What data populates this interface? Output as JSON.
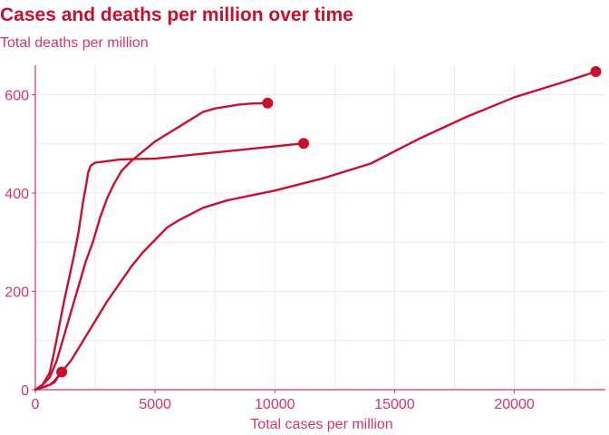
{
  "title": "Cases and deaths per million over time",
  "subtitle": "Total deaths per million",
  "colors": {
    "series": "#c8102e",
    "text": "#d6336c",
    "grid": "#fbe4ea",
    "axis": "#d6336c"
  },
  "chart_data": {
    "type": "line",
    "title": "Cases and deaths per million over time",
    "subtitle": "Total deaths per million",
    "xlabel": "Total cases per million",
    "ylabel": "",
    "xlim": [
      0,
      23800
    ],
    "ylim": [
      0,
      660
    ],
    "xticks": [
      0,
      5000,
      10000,
      15000,
      20000
    ],
    "yticks": [
      0,
      200,
      400,
      600
    ],
    "grid": true,
    "legend": "none",
    "series": [
      {
        "x": [
          0,
          300,
          600,
          800,
          1000,
          1200,
          1400,
          1600,
          1800,
          2000,
          2100,
          2200,
          2300,
          2500,
          3000,
          3500,
          4000,
          5000,
          6000,
          7000,
          8000,
          9000,
          10000,
          11200
        ],
        "y": [
          0,
          10,
          35,
          80,
          130,
          180,
          225,
          270,
          320,
          385,
          410,
          440,
          455,
          462,
          465,
          468,
          469,
          470,
          475,
          480,
          485,
          490,
          495,
          501
        ],
        "end_marker": true
      },
      {
        "x": [
          0,
          300,
          600,
          900,
          1200,
          1500,
          1800,
          2100,
          2400,
          2700,
          3000,
          3300,
          3600,
          4000,
          4500,
          5000,
          5500,
          6000,
          6500,
          7000,
          7500,
          8000,
          8500,
          9000,
          9700
        ],
        "y": [
          0,
          10,
          25,
          60,
          110,
          160,
          210,
          260,
          300,
          350,
          390,
          420,
          445,
          465,
          485,
          505,
          520,
          535,
          550,
          565,
          572,
          576,
          580,
          582,
          583
        ],
        "end_marker": true
      },
      {
        "x": [
          0,
          200,
          400,
          600,
          800,
          1100
        ],
        "y": [
          0,
          3,
          6,
          10,
          18,
          36
        ],
        "end_marker": true
      },
      {
        "x": [
          0,
          300,
          600,
          800,
          1000,
          1500,
          2000,
          2500,
          3000,
          3500,
          4000,
          4500,
          5000,
          5500,
          6000,
          7000,
          8000,
          9000,
          10000,
          12000,
          14000,
          16000,
          18000,
          20000,
          22000,
          23400
        ],
        "y": [
          0,
          5,
          10,
          15,
          30,
          60,
          100,
          140,
          180,
          215,
          250,
          280,
          305,
          330,
          345,
          370,
          385,
          395,
          405,
          430,
          460,
          510,
          555,
          595,
          625,
          647
        ],
        "end_marker": true
      }
    ]
  }
}
